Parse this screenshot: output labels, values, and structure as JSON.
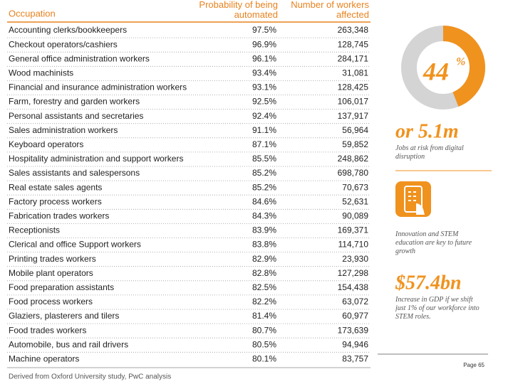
{
  "table": {
    "header": [
      "Occupation",
      "Probability of being automated",
      "Number of workers affected"
    ],
    "rows": [
      [
        "Accounting clerks/bookkeepers",
        "97.5%",
        "263,348"
      ],
      [
        "Checkout operators/cashiers",
        "96.9%",
        "128,745"
      ],
      [
        "General office administration workers",
        "96.1%",
        "284,171"
      ],
      [
        "Wood machinists",
        "93.4%",
        "31,081"
      ],
      [
        "Financial and insurance administration workers",
        "93.1%",
        "128,425"
      ],
      [
        "Farm, forestry and garden workers",
        "92.5%",
        "106,017"
      ],
      [
        "Personal assistants and secretaries",
        "92.4%",
        "137,917"
      ],
      [
        "Sales administration workers",
        "91.1%",
        "56,964"
      ],
      [
        "Keyboard operators",
        "87.1%",
        "59,852"
      ],
      [
        "Hospitality administration and support workers",
        "85.5%",
        "248,862"
      ],
      [
        "Sales assistants and salespersons",
        "85.2%",
        "698,780"
      ],
      [
        "Real estate sales agents",
        "85.2%",
        "70,673"
      ],
      [
        "Factory process workers",
        "84.6%",
        "52,631"
      ],
      [
        "Fabrication trades workers",
        "84.3%",
        "90,089"
      ],
      [
        "Receptionists",
        "83.9%",
        "169,371"
      ],
      [
        "Clerical and office Support workers",
        "83.8%",
        "114,710"
      ],
      [
        "Printing trades workers",
        "82.9%",
        "23,930"
      ],
      [
        "Mobile plant operators",
        "82.8%",
        "127,298"
      ],
      [
        "Food preparation assistants",
        "82.5%",
        "154,438"
      ],
      [
        "Food process workers",
        "82.2%",
        "63,072"
      ],
      [
        "Glaziers, plasterers and tilers",
        "81.4%",
        "60,977"
      ],
      [
        "Food trades workers",
        "80.7%",
        "173,639"
      ],
      [
        "Automobile, bus and rail drivers",
        "80.5%",
        "94,946"
      ],
      [
        "Machine operators",
        "80.1%",
        "83,757"
      ]
    ],
    "source": "Derived from Oxford University study, PwC analysis"
  },
  "sidebar": {
    "donut": {
      "value": 44,
      "unit": "%"
    },
    "jobs": "or 5.1m",
    "jobs_caption": "Jobs at risk from digital disruption",
    "stem_caption": "Innovation and STEM education are key to future growth",
    "gdp": "$57.4bn",
    "gdp_caption": "Increase in GDP if we shift just 1% of our workforce into STEM roles."
  },
  "footer": {
    "page": "Page 65"
  }
}
